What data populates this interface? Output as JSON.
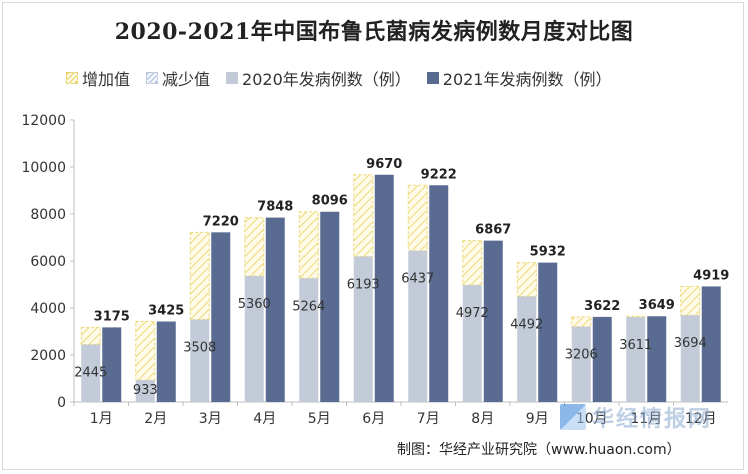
{
  "title": "2020-2021年中国布鲁氏菌病发病例数月度对比图",
  "legend": {
    "increase": "增加值",
    "decrease": "减少值",
    "y2020": "2020年发病例数（例）",
    "y2021": "2021年发病例数（例）"
  },
  "colors": {
    "y2020": "#c4cbd8",
    "y2021": "#5a6b91",
    "increase_hatch": "#ecd97a",
    "decrease_hatch": "#b9c7e0",
    "axis": "#bfbfbf"
  },
  "source": "制图：华经产业研究院（www.huaon.com）",
  "watermark": "华经情报网",
  "chart_data": {
    "type": "bar",
    "title": "2020-2021年中国布鲁氏菌病发病例数月度对比图",
    "categories": [
      "1月",
      "2月",
      "3月",
      "4月",
      "5月",
      "6月",
      "7月",
      "8月",
      "9月",
      "10月",
      "11月",
      "12月"
    ],
    "series": [
      {
        "name": "2020年发病例数（例）",
        "values": [
          2445,
          933,
          3508,
          5360,
          5264,
          6193,
          6437,
          4972,
          4492,
          3206,
          3611,
          3694
        ]
      },
      {
        "name": "2021年发病例数（例）",
        "values": [
          3175,
          3425,
          7220,
          7848,
          8096,
          9670,
          9222,
          6867,
          5932,
          3622,
          3649,
          4919
        ]
      }
    ],
    "ylim": [
      0,
      12000
    ],
    "yticks": [
      0,
      2000,
      4000,
      6000,
      8000,
      10000,
      12000
    ],
    "legend_position": "top",
    "grid": false
  }
}
